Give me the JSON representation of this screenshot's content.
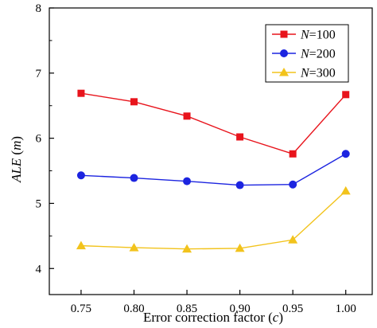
{
  "chart_data": {
    "type": "line",
    "title": "",
    "xlabel": "Error correction factor (c)",
    "ylabel": "ALE (m)",
    "x": [
      0.75,
      0.8,
      0.85,
      0.9,
      0.95,
      1.0
    ],
    "xticks": [
      "0.75",
      "0.80",
      "0.85",
      "0.90",
      "0.95",
      "1.00"
    ],
    "yticks": [
      "4",
      "5",
      "6",
      "7",
      "8"
    ],
    "xlim": [
      0.72,
      1.025
    ],
    "ylim": [
      3.6,
      8.0
    ],
    "grid": false,
    "legend_position": "top-right",
    "series": [
      {
        "name": "N=100",
        "marker": "square",
        "color": "#e8141c",
        "values": [
          6.69,
          6.56,
          6.34,
          6.02,
          5.76,
          6.67
        ]
      },
      {
        "name": "N=200",
        "marker": "circle",
        "color": "#1c24e0",
        "values": [
          5.43,
          5.39,
          5.34,
          5.28,
          5.29,
          5.76
        ]
      },
      {
        "name": "N=300",
        "marker": "triangle",
        "color": "#f2c31c",
        "values": [
          4.35,
          4.32,
          4.3,
          4.31,
          4.44,
          5.19
        ]
      }
    ]
  }
}
